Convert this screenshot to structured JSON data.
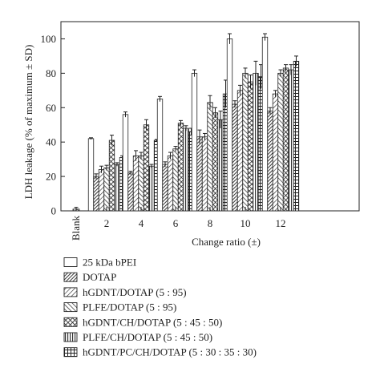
{
  "chart_data": {
    "type": "bar",
    "title": "",
    "xlabel": "Change ratio (±)",
    "ylabel": "LDH leakage (% of maximum ± SD)",
    "ylim": [
      0,
      110
    ],
    "yticks": [
      0,
      20,
      40,
      60,
      80,
      100
    ],
    "grid": false,
    "legend_position": "bottom",
    "blank": {
      "label": "Blank",
      "value": 1,
      "error": 1
    },
    "categories": [
      "2",
      "4",
      "6",
      "8",
      "10",
      "12"
    ],
    "series": [
      {
        "name": "25 kDa bPEI",
        "pattern": "empty",
        "values": [
          42,
          56,
          65,
          80,
          100,
          101
        ],
        "errors": [
          0.5,
          1.5,
          1.5,
          2,
          3,
          2
        ]
      },
      {
        "name": "DOTAP",
        "pattern": "diag-dense",
        "values": [
          20,
          22,
          27,
          43,
          62,
          58
        ],
        "errors": [
          1.5,
          1,
          1.5,
          4,
          2,
          2
        ]
      },
      {
        "name": "hGDNT/DOTAP (5 : 95)",
        "pattern": "diag",
        "values": [
          24,
          32,
          32,
          43,
          70,
          68
        ],
        "errors": [
          2,
          3,
          2,
          2,
          3,
          2
        ]
      },
      {
        "name": "PLFE/DOTAP (5 : 95)",
        "pattern": "diag-back",
        "values": [
          25,
          32,
          36,
          63,
          80,
          80
        ],
        "errors": [
          1.5,
          2,
          1.5,
          4,
          3,
          2
        ]
      },
      {
        "name": "hGDNT/CH/DOTAP (5 : 45 : 50)",
        "pattern": "crosshatch",
        "values": [
          41,
          50,
          51,
          57,
          75,
          83
        ],
        "errors": [
          3,
          3,
          1.5,
          3,
          4,
          2
        ]
      },
      {
        "name": "PLFE/CH/DOTAP (5 : 45 : 50)",
        "pattern": "vertical",
        "values": [
          27,
          26,
          48,
          53,
          80,
          82
        ],
        "errors": [
          1,
          1,
          1.5,
          5,
          7,
          3
        ]
      },
      {
        "name": "hGDNT/PC/CH/DOTAP (5 : 30 : 35 : 30)",
        "pattern": "grid",
        "values": [
          31,
          41,
          46,
          68,
          78,
          87
        ],
        "errors": [
          1,
          0.5,
          2,
          8,
          7,
          3
        ]
      }
    ]
  }
}
